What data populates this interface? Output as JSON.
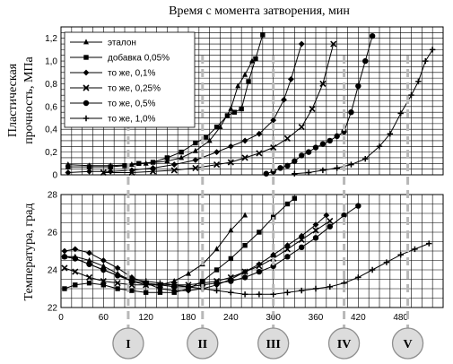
{
  "chart_data": {
    "title": "Время с момента затворения, мин",
    "x": {
      "min": 0,
      "max": 540,
      "ticks": [
        0,
        60,
        120,
        180,
        240,
        300,
        360,
        420,
        480
      ]
    },
    "panels": [
      {
        "id": "strength",
        "type": "line",
        "ylabel_line1": "Пластическая",
        "ylabel_line2": "прочность, МПа",
        "ylim": [
          0,
          1.3
        ],
        "yticks": [
          "0",
          "0,2",
          "0,4",
          "0,6",
          "0,8",
          "1,0",
          "1,2"
        ],
        "ytick_values": [
          0,
          0.2,
          0.4,
          0.6,
          0.8,
          1.0,
          1.2
        ],
        "grid": true,
        "legend_position": "top-left",
        "series": [
          {
            "name": "эталон",
            "marker": "triangle",
            "points": [
              [
                10,
                0.09
              ],
              [
                40,
                0.08
              ],
              [
                70,
                0.08
              ],
              [
                100,
                0.09
              ],
              [
                120,
                0.1
              ],
              [
                150,
                0.12
              ],
              [
                170,
                0.15
              ],
              [
                190,
                0.21
              ],
              [
                210,
                0.3
              ],
              [
                225,
                0.42
              ],
              [
                240,
                0.58
              ],
              [
                250,
                0.78
              ],
              [
                260,
                0.88
              ],
              [
                270,
                1.0
              ]
            ]
          },
          {
            "name": "добавка 0,05%",
            "marker": "square",
            "points": [
              [
                10,
                0.07
              ],
              [
                40,
                0.07
              ],
              [
                70,
                0.07
              ],
              [
                90,
                0.08
              ],
              [
                110,
                0.1
              ],
              [
                130,
                0.11
              ],
              [
                150,
                0.15
              ],
              [
                170,
                0.2
              ],
              [
                190,
                0.28
              ],
              [
                205,
                0.33
              ],
              [
                220,
                0.42
              ],
              [
                235,
                0.52
              ],
              [
                245,
                0.55
              ],
              [
                255,
                0.58
              ],
              [
                265,
                0.82
              ],
              [
                275,
                1.02
              ],
              [
                285,
                1.23
              ]
            ]
          },
          {
            "name": "то же, 0,1%",
            "marker": "diamond",
            "points": [
              [
                10,
                0.02
              ],
              [
                40,
                0.03
              ],
              [
                70,
                0.03
              ],
              [
                100,
                0.04
              ],
              [
                130,
                0.06
              ],
              [
                160,
                0.09
              ],
              [
                190,
                0.13
              ],
              [
                220,
                0.2
              ],
              [
                240,
                0.25
              ],
              [
                260,
                0.3
              ],
              [
                280,
                0.36
              ],
              [
                300,
                0.48
              ],
              [
                315,
                0.66
              ],
              [
                325,
                0.84
              ],
              [
                340,
                1.15
              ]
            ]
          },
          {
            "name": "то же, 0,25%",
            "marker": "x",
            "points": [
              [
                60,
                0.02
              ],
              [
                100,
                0.02
              ],
              [
                130,
                0.03
              ],
              [
                160,
                0.04
              ],
              [
                190,
                0.06
              ],
              [
                220,
                0.09
              ],
              [
                240,
                0.11
              ],
              [
                260,
                0.15
              ],
              [
                280,
                0.19
              ],
              [
                300,
                0.24
              ],
              [
                320,
                0.32
              ],
              [
                340,
                0.42
              ],
              [
                355,
                0.58
              ],
              [
                370,
                0.8
              ],
              [
                385,
                1.15
              ]
            ]
          },
          {
            "name": "то же, 0,5%",
            "marker": "circle",
            "points": [
              [
                290,
                0.01
              ],
              [
                300,
                0.03
              ],
              [
                310,
                0.06
              ],
              [
                320,
                0.08
              ],
              [
                330,
                0.12
              ],
              [
                340,
                0.17
              ],
              [
                350,
                0.2
              ],
              [
                360,
                0.24
              ],
              [
                370,
                0.27
              ],
              [
                380,
                0.3
              ],
              [
                390,
                0.34
              ],
              [
                400,
                0.38
              ],
              [
                410,
                0.55
              ],
              [
                420,
                0.78
              ],
              [
                430,
                1.0
              ],
              [
                440,
                1.22
              ]
            ]
          },
          {
            "name": "то же, 1,0%",
            "marker": "plus",
            "points": [
              [
                330,
                0.01
              ],
              [
                350,
                0.02
              ],
              [
                370,
                0.04
              ],
              [
                390,
                0.06
              ],
              [
                410,
                0.09
              ],
              [
                430,
                0.14
              ],
              [
                450,
                0.25
              ],
              [
                465,
                0.36
              ],
              [
                480,
                0.54
              ],
              [
                495,
                0.7
              ],
              [
                505,
                0.82
              ],
              [
                515,
                1.0
              ],
              [
                525,
                1.1
              ]
            ]
          }
        ]
      },
      {
        "id": "temperature",
        "type": "line",
        "ylabel": "Температура, град",
        "ylim": [
          22,
          28
        ],
        "yticks": [
          "22",
          "24",
          "26",
          "28"
        ],
        "ytick_values": [
          22,
          24,
          26,
          28
        ],
        "grid": true,
        "series": [
          {
            "name": "эталон",
            "marker": "triangle",
            "points": [
              [
                5,
                24.7
              ],
              [
                20,
                24.7
              ],
              [
                40,
                24.5
              ],
              [
                60,
                24.2
              ],
              [
                80,
                23.8
              ],
              [
                100,
                23.4
              ],
              [
                120,
                23.2
              ],
              [
                140,
                23.2
              ],
              [
                160,
                23.4
              ],
              [
                180,
                23.8
              ],
              [
                200,
                24.3
              ],
              [
                220,
                25.1
              ],
              [
                240,
                26.1
              ],
              [
                260,
                26.9
              ]
            ]
          },
          {
            "name": "добавка 0,05%",
            "marker": "square",
            "points": [
              [
                5,
                23.0
              ],
              [
                20,
                23.2
              ],
              [
                40,
                23.3
              ],
              [
                60,
                23.2
              ],
              [
                80,
                23.0
              ],
              [
                100,
                22.9
              ],
              [
                120,
                22.8
              ],
              [
                140,
                22.8
              ],
              [
                160,
                22.8
              ],
              [
                180,
                23.0
              ],
              [
                200,
                23.4
              ],
              [
                220,
                24.0
              ],
              [
                240,
                24.6
              ],
              [
                260,
                25.3
              ],
              [
                280,
                26.0
              ],
              [
                300,
                26.8
              ],
              [
                320,
                27.5
              ],
              [
                330,
                27.8
              ]
            ]
          },
          {
            "name": "то же, 0,1%",
            "marker": "diamond",
            "points": [
              [
                5,
                25.0
              ],
              [
                20,
                25.1
              ],
              [
                40,
                24.9
              ],
              [
                60,
                24.5
              ],
              [
                80,
                24.1
              ],
              [
                100,
                23.6
              ],
              [
                120,
                23.3
              ],
              [
                140,
                23.0
              ],
              [
                160,
                22.9
              ],
              [
                180,
                22.9
              ],
              [
                200,
                23.0
              ],
              [
                220,
                23.2
              ],
              [
                240,
                23.5
              ],
              [
                260,
                23.9
              ],
              [
                280,
                24.3
              ],
              [
                300,
                24.8
              ],
              [
                320,
                25.3
              ],
              [
                340,
                25.8
              ],
              [
                360,
                26.4
              ],
              [
                375,
                26.9
              ]
            ]
          },
          {
            "name": "то же, 0,25%",
            "marker": "x",
            "points": [
              [
                5,
                24.1
              ],
              [
                20,
                23.9
              ],
              [
                40,
                23.6
              ],
              [
                60,
                23.4
              ],
              [
                80,
                23.3
              ],
              [
                100,
                23.2
              ],
              [
                120,
                23.2
              ],
              [
                140,
                23.2
              ],
              [
                160,
                23.2
              ],
              [
                180,
                23.2
              ],
              [
                200,
                23.3
              ],
              [
                220,
                23.4
              ],
              [
                240,
                23.6
              ],
              [
                260,
                23.9
              ],
              [
                280,
                24.2
              ],
              [
                300,
                24.6
              ],
              [
                320,
                25.1
              ],
              [
                340,
                25.6
              ],
              [
                360,
                26.1
              ],
              [
                380,
                26.6
              ]
            ]
          },
          {
            "name": "то же, 0,5%",
            "marker": "circle",
            "points": [
              [
                5,
                24.7
              ],
              [
                20,
                24.6
              ],
              [
                40,
                24.3
              ],
              [
                60,
                24.0
              ],
              [
                80,
                23.7
              ],
              [
                100,
                23.4
              ],
              [
                120,
                23.3
              ],
              [
                140,
                23.2
              ],
              [
                160,
                23.1
              ],
              [
                180,
                23.1
              ],
              [
                200,
                23.2
              ],
              [
                220,
                23.3
              ],
              [
                240,
                23.4
              ],
              [
                260,
                23.6
              ],
              [
                280,
                23.9
              ],
              [
                300,
                24.2
              ],
              [
                320,
                24.7
              ],
              [
                340,
                25.2
              ],
              [
                360,
                25.7
              ],
              [
                380,
                26.3
              ],
              [
                400,
                26.9
              ],
              [
                420,
                27.4
              ]
            ]
          },
          {
            "name": "то же, 1,0%",
            "marker": "plus",
            "points": [
              [
                5,
                24.7
              ],
              [
                20,
                24.6
              ],
              [
                40,
                24.3
              ],
              [
                60,
                24.0
              ],
              [
                80,
                23.7
              ],
              [
                100,
                23.5
              ],
              [
                120,
                23.4
              ],
              [
                140,
                23.3
              ],
              [
                160,
                23.2
              ],
              [
                180,
                23.1
              ],
              [
                200,
                23.0
              ],
              [
                220,
                22.9
              ],
              [
                240,
                22.8
              ],
              [
                260,
                22.7
              ],
              [
                280,
                22.7
              ],
              [
                300,
                22.7
              ],
              [
                320,
                22.8
              ],
              [
                340,
                22.9
              ],
              [
                360,
                23.0
              ],
              [
                380,
                23.1
              ],
              [
                400,
                23.3
              ],
              [
                420,
                23.6
              ],
              [
                440,
                24.0
              ],
              [
                460,
                24.4
              ],
              [
                480,
                24.8
              ],
              [
                500,
                25.1
              ],
              [
                520,
                25.4
              ]
            ]
          }
        ]
      }
    ],
    "stages": [
      {
        "label": "I",
        "x": 95
      },
      {
        "label": "II",
        "x": 200
      },
      {
        "label": "III",
        "x": 300
      },
      {
        "label": "IV",
        "x": 400
      },
      {
        "label": "V",
        "x": 490
      }
    ]
  }
}
